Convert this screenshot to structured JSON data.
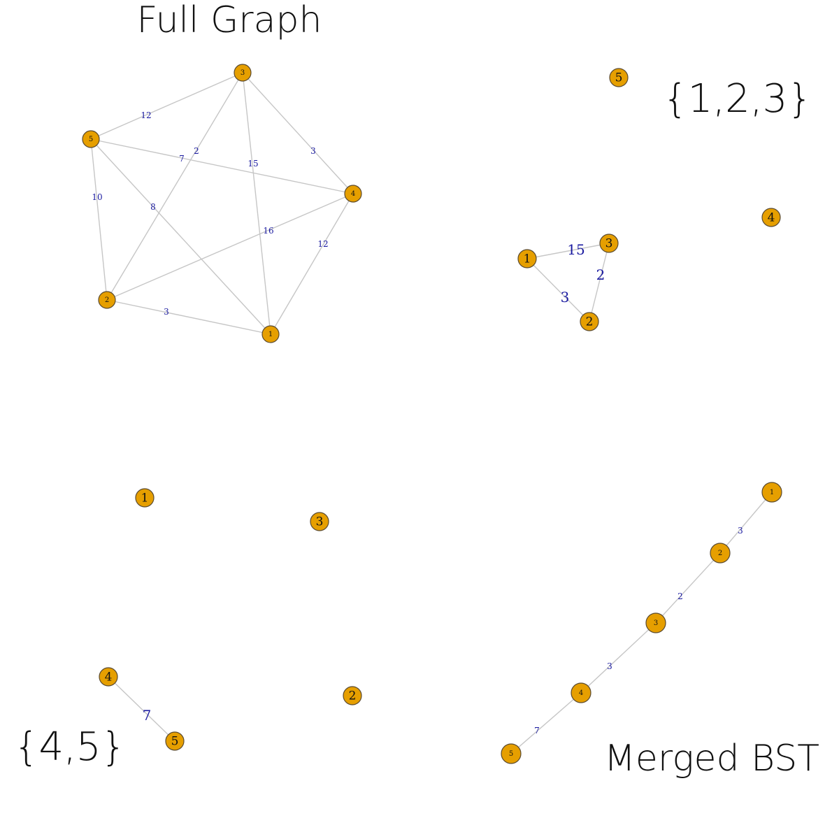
{
  "panels": [
    {
      "id": "full-graph",
      "title": "Full Graph",
      "nodes": [
        "1",
        "2",
        "3",
        "4",
        "5"
      ],
      "edges": [
        {
          "from": "3",
          "to": "5",
          "weight": "12"
        },
        {
          "from": "3",
          "to": "2",
          "weight": "2"
        },
        {
          "from": "3",
          "to": "1",
          "weight": "15"
        },
        {
          "from": "3",
          "to": "4",
          "weight": "3"
        },
        {
          "from": "5",
          "to": "4",
          "weight": "7"
        },
        {
          "from": "5",
          "to": "2",
          "weight": "10"
        },
        {
          "from": "5",
          "to": "1",
          "weight": "8"
        },
        {
          "from": "2",
          "to": "4",
          "weight": "16"
        },
        {
          "from": "4",
          "to": "1",
          "weight": "12"
        },
        {
          "from": "2",
          "to": "1",
          "weight": "3"
        }
      ]
    },
    {
      "id": "set-123",
      "title": "{1,2,3}",
      "nodes": [
        "1",
        "2",
        "3",
        "4",
        "5"
      ],
      "edges": [
        {
          "from": "1",
          "to": "3",
          "weight": "15"
        },
        {
          "from": "3",
          "to": "2",
          "weight": "2"
        },
        {
          "from": "1",
          "to": "2",
          "weight": "3"
        }
      ]
    },
    {
      "id": "set-45",
      "title": "{4,5}",
      "nodes": [
        "1",
        "2",
        "3",
        "4",
        "5"
      ],
      "edges": [
        {
          "from": "4",
          "to": "5",
          "weight": "7"
        }
      ]
    },
    {
      "id": "merged-bst",
      "title": "Merged BST",
      "nodes": [
        "1",
        "2",
        "3",
        "4",
        "5"
      ],
      "edges": [
        {
          "from": "1",
          "to": "2",
          "weight": "3"
        },
        {
          "from": "2",
          "to": "3",
          "weight": "2"
        },
        {
          "from": "3",
          "to": "4",
          "weight": "3"
        },
        {
          "from": "4",
          "to": "5",
          "weight": "7"
        }
      ]
    }
  ],
  "colors": {
    "node_fill": "#E69F00",
    "edge": "#c6c6c6",
    "edge_label": "#1a1aa0"
  }
}
